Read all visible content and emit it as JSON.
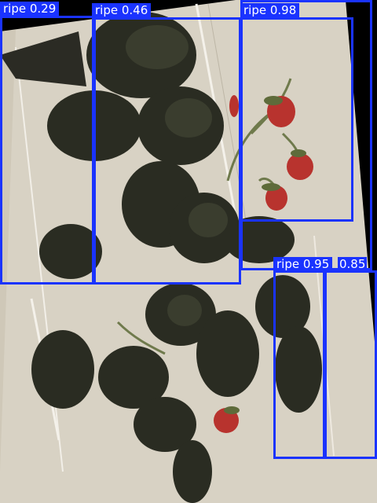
{
  "image": {
    "subject": "strawberry-plant-on-white-board",
    "colors": {
      "background": "#000000",
      "board": "#d8d2c4",
      "leaf": "#2a2c22",
      "leaf_light": "#3a3d2e",
      "stem": "#6f7a4c",
      "berry": "#b8332e",
      "box": "#1a33ff",
      "label_text": "#ffffff"
    }
  },
  "detections": [
    {
      "label": "ripe 0.29"
    },
    {
      "label": "ripe 0.46"
    },
    {
      "label": "ripe 0.98"
    },
    {
      "label": ""
    },
    {
      "label": "ripe 0.95"
    },
    {
      "label": "0.85"
    }
  ]
}
